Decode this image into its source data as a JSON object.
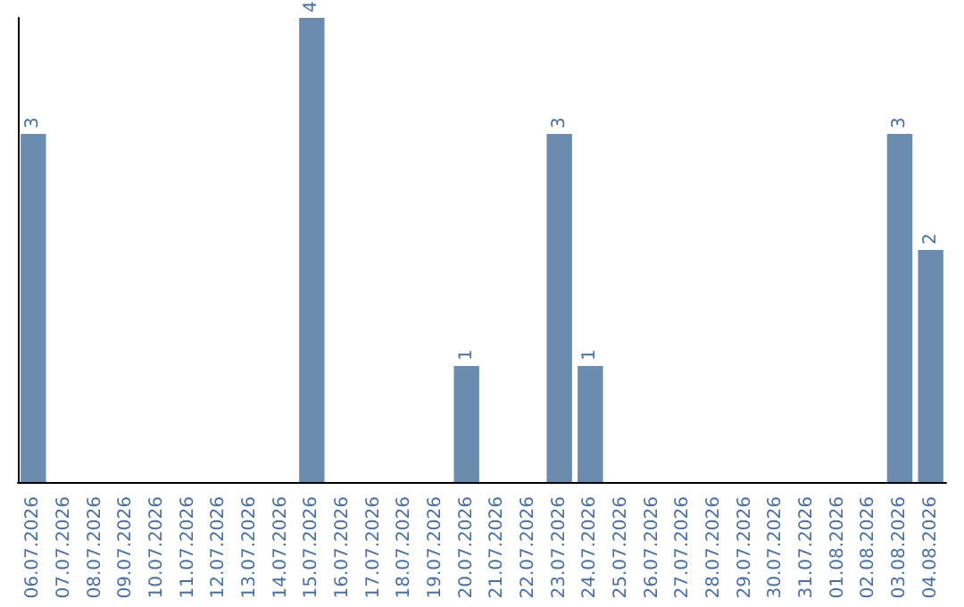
{
  "chart_data": {
    "type": "bar",
    "categories": [
      "06.07.2026",
      "07.07.2026",
      "08.07.2026",
      "09.07.2026",
      "10.07.2026",
      "11.07.2026",
      "12.07.2026",
      "13.07.2026",
      "14.07.2026",
      "15.07.2026",
      "16.07.2026",
      "17.07.2026",
      "18.07.2026",
      "19.07.2026",
      "20.07.2026",
      "21.07.2026",
      "22.07.2026",
      "23.07.2026",
      "24.07.2026",
      "25.07.2026",
      "26.07.2026",
      "27.07.2026",
      "28.07.2026",
      "29.07.2026",
      "30.07.2026",
      "31.07.2026",
      "01.08.2026",
      "02.08.2026",
      "03.08.2026",
      "04.08.2026"
    ],
    "values": [
      3,
      0,
      0,
      0,
      0,
      0,
      0,
      0,
      0,
      4,
      0,
      0,
      0,
      0,
      1,
      0,
      0,
      3,
      1,
      0,
      0,
      0,
      0,
      0,
      0,
      0,
      0,
      0,
      3,
      2
    ],
    "color": "#6b8cae",
    "value_labels": [
      "3",
      null,
      null,
      null,
      null,
      null,
      null,
      null,
      null,
      "4",
      null,
      null,
      null,
      null,
      "1",
      null,
      null,
      "3",
      "1",
      null,
      null,
      null,
      null,
      null,
      null,
      null,
      null,
      null,
      "3",
      "2"
    ]
  }
}
